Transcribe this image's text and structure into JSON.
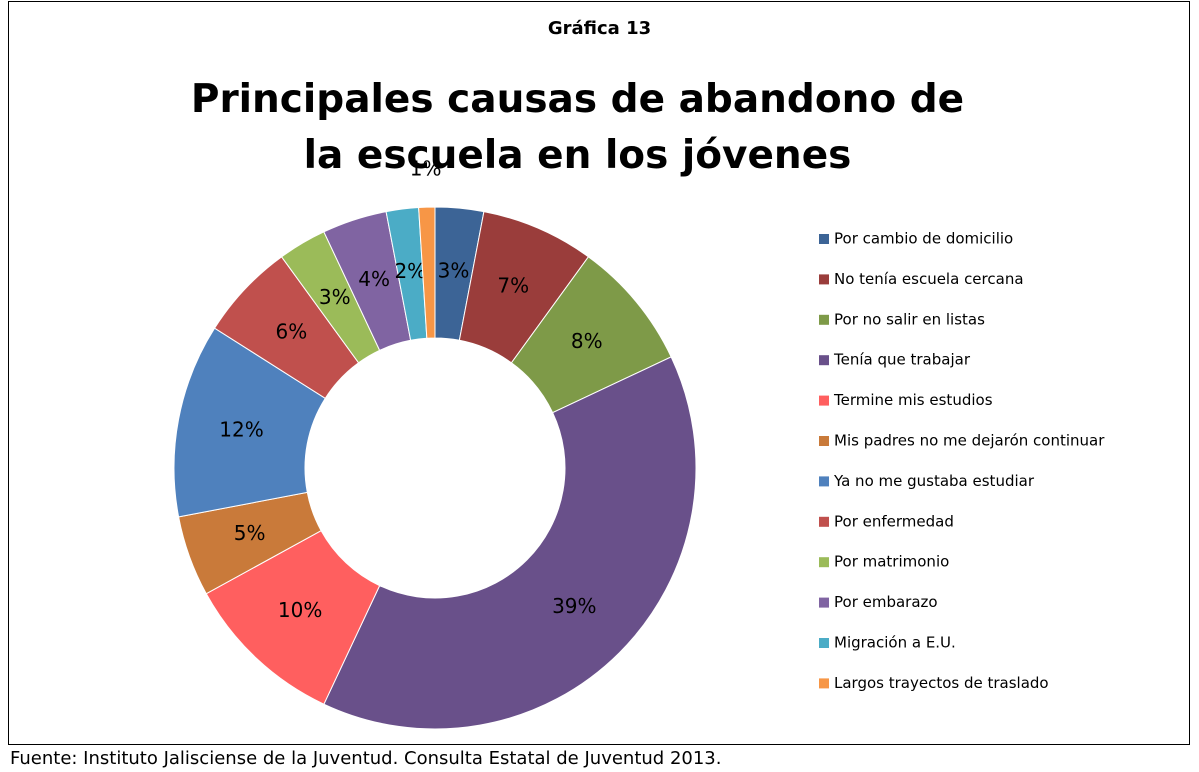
{
  "chart_data": {
    "type": "donut",
    "label": "Gráfica 13",
    "title": "Principales causas de abandono de la escuela en los jóvenes",
    "source": "Fuente: Instituto Jalisciense de la Juventud. Consulta Estatal de Juventud 2013.",
    "categories": [
      "Por cambio de domicilio",
      "No tenía escuela cercana",
      "Por no salir en listas",
      "Tenía que trabajar",
      "Termine mis estudios",
      "Mis padres no me dejarón continuar",
      "Ya no me gustaba estudiar",
      "Por enfermedad",
      "Por matrimonio",
      "Por embarazo",
      "Migración a E.U.",
      "Largos trayectos de traslado"
    ],
    "values": [
      3,
      7,
      8,
      39,
      10,
      5,
      12,
      6,
      3,
      4,
      2,
      1
    ],
    "value_labels": [
      "3%",
      "7%",
      "8%",
      "39%",
      "10%",
      "5%",
      "12%",
      "6%",
      "3%",
      "4%",
      "2%",
      "1%"
    ],
    "colors": [
      "#3c6496",
      "#9a3d3b",
      "#7e9a48",
      "#69508a",
      "#ff5f5f",
      "#c97a3a",
      "#4f81bd",
      "#c0504d",
      "#9bbb59",
      "#8064a2",
      "#4bacc6",
      "#f79646"
    ],
    "legend": "right"
  }
}
